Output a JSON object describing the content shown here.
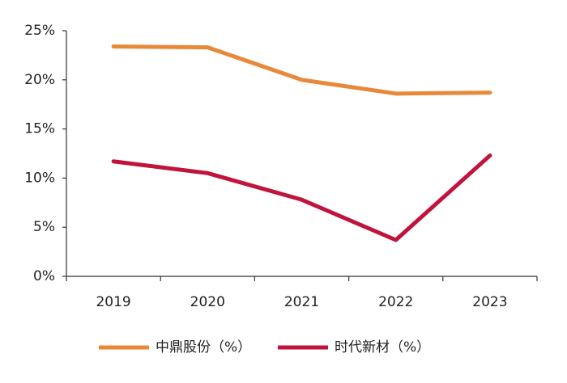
{
  "chart_data": {
    "type": "line",
    "categories": [
      "2019",
      "2020",
      "2021",
      "2022",
      "2023"
    ],
    "series": [
      {
        "name": "中鼎股份（%）",
        "color": "#e8893a",
        "values": [
          23.4,
          23.3,
          20.0,
          18.6,
          18.7
        ]
      },
      {
        "name": "时代新材（%）",
        "color": "#c0143c",
        "values": [
          11.7,
          10.5,
          7.8,
          3.7,
          12.3
        ]
      }
    ],
    "ylim": [
      0,
      25
    ],
    "yticks": [
      {
        "value": 0,
        "label": "0%"
      },
      {
        "value": 5,
        "label": "5%"
      },
      {
        "value": 10,
        "label": "10%"
      },
      {
        "value": 15,
        "label": "15%"
      },
      {
        "value": 20,
        "label": "20%"
      },
      {
        "value": 25,
        "label": "25%"
      }
    ],
    "legend": "bottom"
  }
}
